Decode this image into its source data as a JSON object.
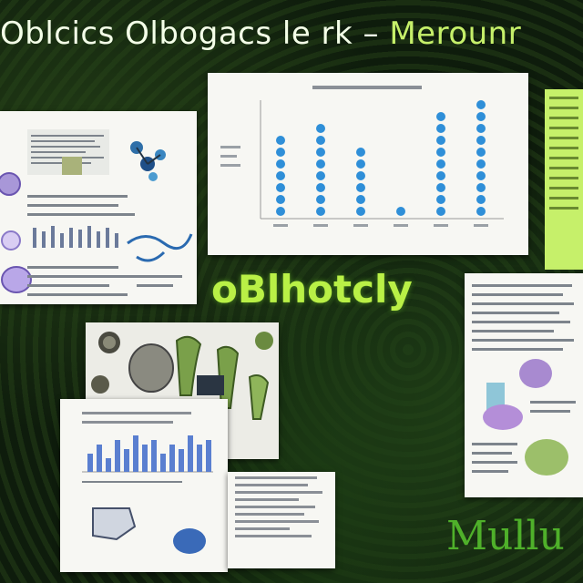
{
  "header": {
    "title_main": "Oblcics Olbogacs le rk",
    "title_sep": "–",
    "title_end": "Merounr"
  },
  "center": {
    "title": "oBlhotcly"
  },
  "footer": {
    "word": "Mullu"
  },
  "chart_data": {
    "type": "scatter",
    "title": "",
    "columns": [
      {
        "x": 1,
        "points": [
          1,
          2,
          3,
          4,
          5,
          6,
          7
        ]
      },
      {
        "x": 2,
        "points": [
          1,
          2,
          3,
          4,
          5,
          6,
          7,
          8
        ]
      },
      {
        "x": 3,
        "points": [
          1,
          2,
          3,
          4,
          5,
          6
        ]
      },
      {
        "x": 4,
        "points": [
          1
        ]
      },
      {
        "x": 5,
        "points": [
          1,
          2,
          3,
          4,
          5,
          6,
          7,
          8,
          9
        ]
      },
      {
        "x": 6,
        "points": [
          1,
          2,
          3,
          4,
          5,
          6,
          7,
          8,
          9,
          10
        ]
      }
    ],
    "series_color": "#2f8fd8"
  },
  "bottom_bars": {
    "values": [
      4,
      6,
      3,
      7,
      5,
      8,
      6,
      7,
      4,
      6,
      5,
      8,
      6,
      7
    ],
    "color": "#5a7fd0"
  },
  "colors": {
    "accent": "#b9f046",
    "header_text": "#f4ffe8",
    "panel": "#f7f7f3",
    "dots": "#2f8fd8"
  },
  "icons": [
    "brain-illustration-icon",
    "molecule-icon",
    "tissue-blob-icon",
    "cell-cluster-icon",
    "flowchart-icon"
  ]
}
